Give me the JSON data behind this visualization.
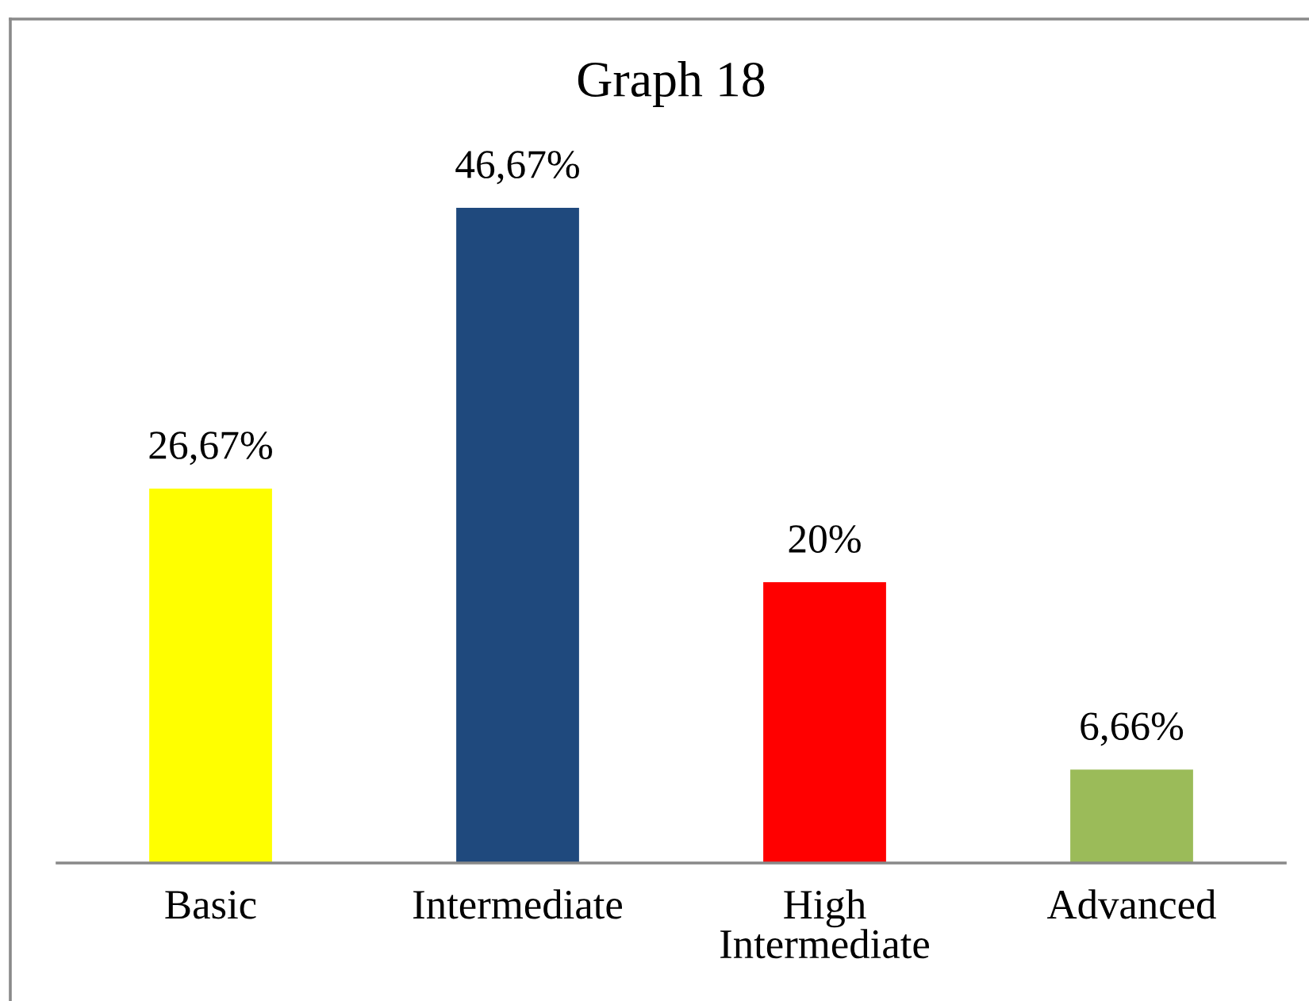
{
  "chart_data": {
    "type": "bar",
    "title": "Graph 18",
    "categories": [
      "Basic",
      "Intermediate",
      "High Intermediate",
      "Advanced"
    ],
    "values": [
      26.67,
      46.67,
      20,
      6.66
    ],
    "colors": [
      "#ffff00",
      "#1f497d",
      "#ff0000",
      "#9bbb59"
    ],
    "value_labels": [
      "26,67%",
      "46,67%",
      "20%",
      "6,66%"
    ],
    "tick_labels": "x"
  }
}
